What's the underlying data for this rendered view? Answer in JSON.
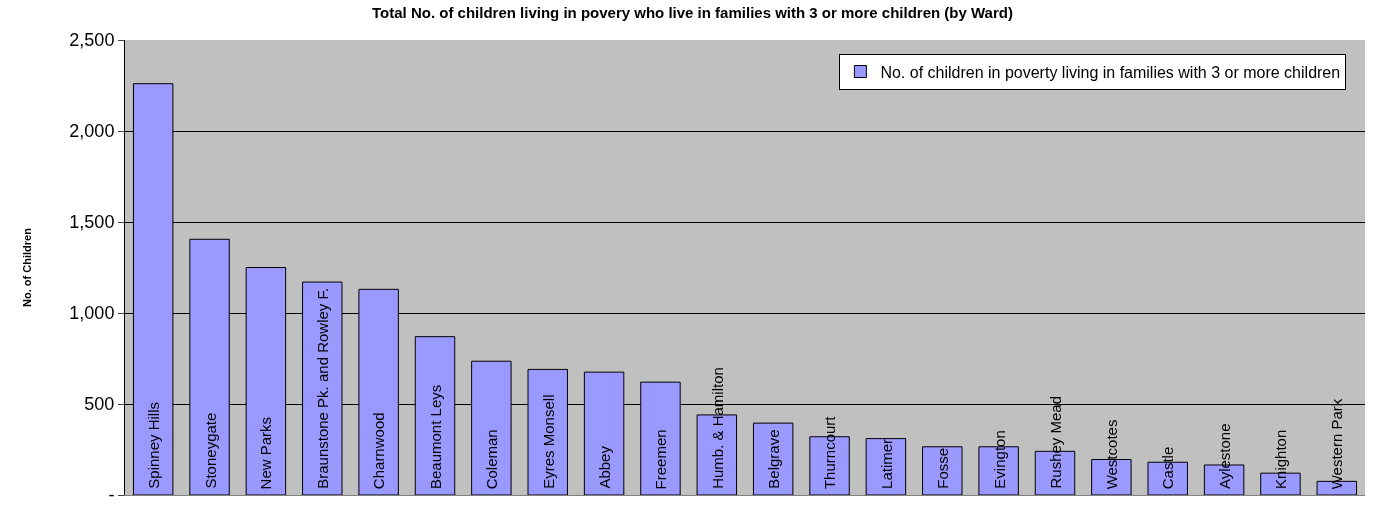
{
  "chart_data": {
    "type": "bar",
    "title": "Total No. of children living in povery who live in families with 3 or more children (by Ward)",
    "ylabel": "No. of Children",
    "categories": [
      "Spinney Hills",
      "Stoneygate",
      "New Parks",
      "Braunstone Pk. and Rowley F.",
      "Charnwood",
      "Beaumont Leys",
      "Coleman",
      "Eyres Monsell",
      "Abbey",
      "Freemen",
      "Humb. & Hamilton",
      "Belgrave",
      "Thurncourt",
      "Latimer",
      "Fosse",
      "Evington",
      "Rushey Mead",
      "Westcotes",
      "Castle",
      "Aylestone",
      "Knighton",
      "Western Park"
    ],
    "series": [
      {
        "name": "No. of children in poverty living in families with 3 or more children",
        "color": "#9999ff",
        "values": [
          2260,
          1405,
          1250,
          1170,
          1130,
          870,
          735,
          690,
          675,
          620,
          440,
          395,
          320,
          310,
          265,
          265,
          240,
          195,
          180,
          165,
          120,
          75
        ]
      }
    ],
    "ylim": [
      0,
      2500
    ],
    "yticks": [
      {
        "value": 0,
        "label": "-"
      },
      {
        "value": 500,
        "label": "500"
      },
      {
        "value": 1000,
        "label": "1,000"
      },
      {
        "value": 1500,
        "label": "1,500"
      },
      {
        "value": 2000,
        "label": "2,000"
      },
      {
        "value": 2500,
        "label": "2,500"
      }
    ],
    "grid": "y",
    "legend": "top right"
  }
}
